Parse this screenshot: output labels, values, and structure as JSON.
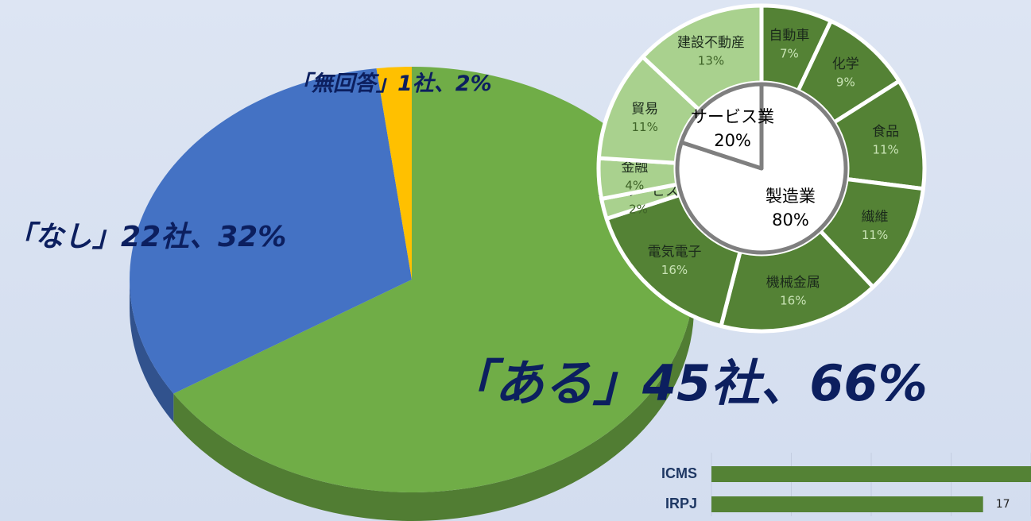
{
  "chart_data": [
    {
      "type": "pie",
      "3d": true,
      "categories": [
        "「ある」",
        "「なし」",
        "「無回答」"
      ],
      "values": [
        66,
        32,
        2
      ],
      "value_labels": [
        "45社、66%",
        "22社、32%",
        "1社、2%"
      ],
      "colors": [
        "#70ad47",
        "#4472c4",
        "#ffc000"
      ]
    },
    {
      "type": "donut",
      "categories": [
        "自動車",
        "化学",
        "食品",
        "繊維",
        "機械金属",
        "電気電子",
        "運輸サービス",
        "金融",
        "貿易",
        "建設不動産"
      ],
      "values": [
        7,
        9,
        11,
        11,
        16,
        16,
        2,
        4,
        11,
        13
      ],
      "value_labels": [
        "7%",
        "9%",
        "11%",
        "11%",
        "16%",
        "16%",
        "2%",
        "4%",
        "11%",
        "13%"
      ],
      "colors": [
        "#548235",
        "#548235",
        "#548235",
        "#548235",
        "#548235",
        "#548235",
        "#a9d18e",
        "#a9d18e",
        "#a9d18e",
        "#a9d18e"
      ]
    },
    {
      "type": "pie",
      "categories": [
        "製造業",
        "サービス業"
      ],
      "values": [
        80,
        20
      ],
      "value_labels": [
        "80%",
        "20%"
      ],
      "colors": [
        "#ffffff",
        "#ffffff"
      ]
    },
    {
      "type": "bar",
      "orientation": "horizontal",
      "categories": [
        "ICMS",
        "IRPJ"
      ],
      "values": [
        20,
        17
      ],
      "xlim": [
        0,
        20
      ],
      "xticks": [
        0,
        5,
        10,
        15,
        20
      ],
      "color": "#548235",
      "grid": true
    }
  ]
}
